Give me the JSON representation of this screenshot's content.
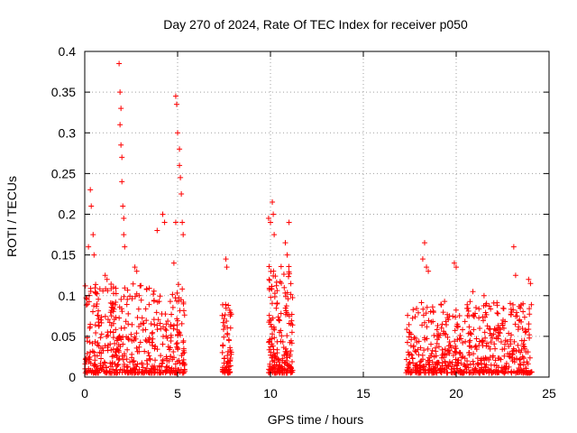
{
  "chart_data": {
    "type": "scatter",
    "title": "Day 270 of 2024, Rate Of TEC Index for receiver p050",
    "xlabel": "GPS time / hours",
    "ylabel": "ROTI / TECUs",
    "xlim": [
      0,
      25
    ],
    "ylim": [
      0,
      0.4
    ],
    "x_ticks": [
      0,
      5,
      10,
      15,
      20,
      25
    ],
    "y_ticks": [
      0,
      0.05,
      0.1,
      0.15,
      0.2,
      0.25,
      0.3,
      0.35,
      0.4
    ],
    "x_tick_labels": [
      "0",
      "5",
      "10",
      "15",
      "20",
      "25"
    ],
    "y_tick_labels": [
      "0",
      "0.05",
      "0.1",
      "0.15",
      "0.2",
      "0.25",
      "0.3",
      "0.35",
      "0.4"
    ],
    "grid": true,
    "marker": "+",
    "marker_color": "#ff0000",
    "series": [
      {
        "name": "ROTI",
        "clusters": [
          {
            "x_start": 0.0,
            "x_end": 5.4,
            "typical_max": 0.1,
            "count": 520
          },
          {
            "x_start": 7.4,
            "x_end": 7.9,
            "typical_max": 0.08,
            "count": 70
          },
          {
            "x_start": 9.9,
            "x_end": 11.2,
            "typical_max": 0.12,
            "count": 200
          },
          {
            "x_start": 17.3,
            "x_end": 24.1,
            "typical_max": 0.08,
            "count": 620
          }
        ],
        "peaks": [
          {
            "x": 0.2,
            "y": 0.16
          },
          {
            "x": 0.3,
            "y": 0.23
          },
          {
            "x": 0.35,
            "y": 0.21
          },
          {
            "x": 0.45,
            "y": 0.175
          },
          {
            "x": 0.5,
            "y": 0.15
          },
          {
            "x": 1.1,
            "y": 0.125
          },
          {
            "x": 1.2,
            "y": 0.12
          },
          {
            "x": 1.85,
            "y": 0.385
          },
          {
            "x": 1.9,
            "y": 0.35
          },
          {
            "x": 1.9,
            "y": 0.31
          },
          {
            "x": 1.95,
            "y": 0.33
          },
          {
            "x": 1.95,
            "y": 0.285
          },
          {
            "x": 2.0,
            "y": 0.27
          },
          {
            "x": 2.0,
            "y": 0.24
          },
          {
            "x": 2.05,
            "y": 0.21
          },
          {
            "x": 2.1,
            "y": 0.195
          },
          {
            "x": 2.1,
            "y": 0.175
          },
          {
            "x": 2.15,
            "y": 0.16
          },
          {
            "x": 2.7,
            "y": 0.135
          },
          {
            "x": 2.8,
            "y": 0.13
          },
          {
            "x": 3.9,
            "y": 0.18
          },
          {
            "x": 4.2,
            "y": 0.2
          },
          {
            "x": 4.3,
            "y": 0.19
          },
          {
            "x": 4.8,
            "y": 0.14
          },
          {
            "x": 4.9,
            "y": 0.19
          },
          {
            "x": 4.9,
            "y": 0.345
          },
          {
            "x": 4.95,
            "y": 0.335
          },
          {
            "x": 5.0,
            "y": 0.3
          },
          {
            "x": 5.1,
            "y": 0.28
          },
          {
            "x": 5.1,
            "y": 0.26
          },
          {
            "x": 5.15,
            "y": 0.245
          },
          {
            "x": 5.2,
            "y": 0.225
          },
          {
            "x": 5.25,
            "y": 0.19
          },
          {
            "x": 5.3,
            "y": 0.175
          },
          {
            "x": 7.6,
            "y": 0.145
          },
          {
            "x": 7.65,
            "y": 0.135
          },
          {
            "x": 9.9,
            "y": 0.195
          },
          {
            "x": 10.0,
            "y": 0.19
          },
          {
            "x": 10.1,
            "y": 0.215
          },
          {
            "x": 10.15,
            "y": 0.2
          },
          {
            "x": 10.2,
            "y": 0.175
          },
          {
            "x": 10.8,
            "y": 0.165
          },
          {
            "x": 10.9,
            "y": 0.15
          },
          {
            "x": 11.0,
            "y": 0.19
          },
          {
            "x": 18.2,
            "y": 0.145
          },
          {
            "x": 18.3,
            "y": 0.165
          },
          {
            "x": 18.4,
            "y": 0.135
          },
          {
            "x": 18.5,
            "y": 0.13
          },
          {
            "x": 19.9,
            "y": 0.14
          },
          {
            "x": 20.0,
            "y": 0.135
          },
          {
            "x": 20.9,
            "y": 0.105
          },
          {
            "x": 21.5,
            "y": 0.1
          },
          {
            "x": 23.1,
            "y": 0.16
          },
          {
            "x": 23.2,
            "y": 0.125
          },
          {
            "x": 23.6,
            "y": 0.09
          },
          {
            "x": 23.9,
            "y": 0.12
          },
          {
            "x": 24.0,
            "y": 0.115
          }
        ]
      }
    ]
  }
}
